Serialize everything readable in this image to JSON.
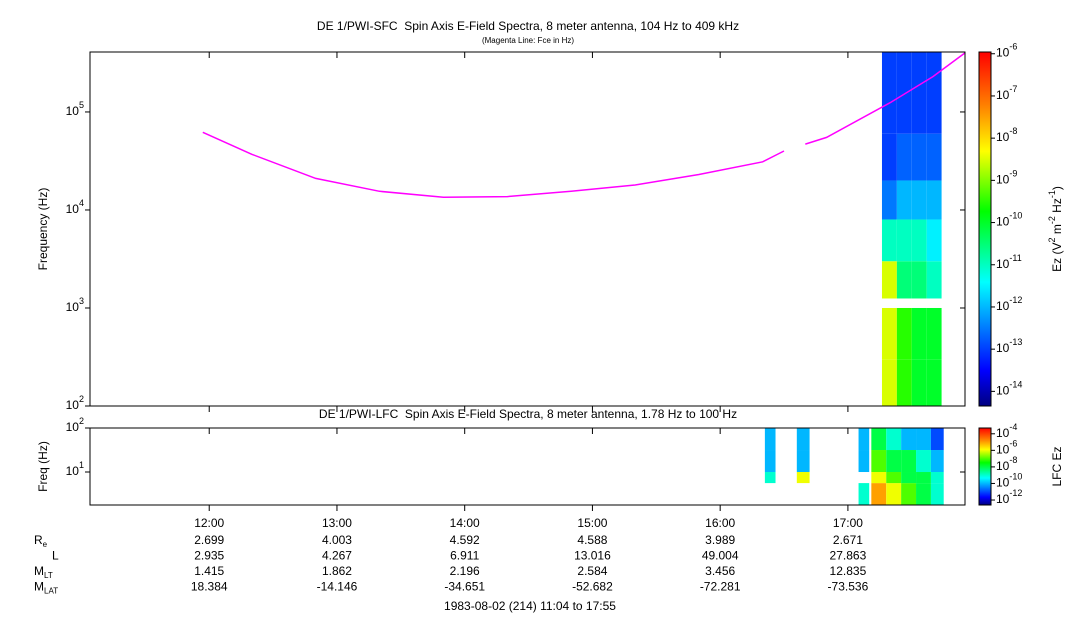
{
  "chart_data": [
    {
      "type": "spectrogram",
      "title": "DE 1/PWI-SFC  Spin Axis E-Field Spectra, 8 meter antenna, 104 Hz to 409 kHz",
      "subtitle": "(Magenta Line: Fce in Hz)",
      "y_label": "Frequency (Hz)",
      "log_y": true,
      "xlim": [
        664,
        1075
      ],
      "ylim": [
        100,
        409000
      ],
      "yticks": [
        {
          "value": 100,
          "label": "10",
          "exp": "2"
        },
        {
          "value": 1000,
          "label": "10",
          "exp": "3"
        },
        {
          "value": 10000,
          "label": "10",
          "exp": "4"
        },
        {
          "value": 100000,
          "label": "10",
          "exp": "5"
        }
      ],
      "freq_edges": [
        100,
        300,
        1000,
        1250,
        3000,
        8000,
        20000,
        60000,
        409000
      ],
      "blocks": [
        {
          "x": [
            1036,
            1043
          ],
          "z": [
            3e-09,
            3e-09,
            null,
            3e-09,
            1e-11,
            3e-13,
            1e-13,
            1e-13
          ]
        },
        {
          "x": [
            1043,
            1050
          ],
          "z": [
            3e-10,
            3e-10,
            null,
            3e-11,
            1e-11,
            1e-12,
            2e-13,
            1e-13
          ]
        },
        {
          "x": [
            1050,
            1057
          ],
          "z": [
            1e-10,
            1e-10,
            null,
            3e-11,
            1e-11,
            1e-12,
            2e-13,
            1e-13
          ]
        },
        {
          "x": [
            1057,
            1064
          ],
          "z": [
            1e-10,
            1e-10,
            null,
            1e-11,
            3e-12,
            1e-12,
            2e-13,
            1e-13
          ]
        }
      ],
      "series": [
        {
          "name": "Fce",
          "color": "#ff00ff",
          "x": [
            717,
            740,
            770,
            800,
            830,
            860,
            890,
            920,
            950,
            980,
            990,
            995,
            1000,
            1010,
            1040,
            1060,
            1075
          ],
          "values": [
            62000,
            37000,
            21000,
            15500,
            13500,
            13700,
            15500,
            18000,
            23000,
            31000,
            40000,
            null,
            47000,
            55000,
            125000,
            230000,
            400000
          ]
        }
      ],
      "colorbar": {
        "label_parts": [
          "Ez (V",
          "2",
          " m",
          "-2",
          " Hz",
          "-1",
          ")"
        ],
        "lim": [
          4.5e-15,
          1.1e-06
        ],
        "ticks": [
          {
            "value": 1e-06,
            "label": "10",
            "exp": "-6"
          },
          {
            "value": 1e-07,
            "label": "10",
            "exp": "-7"
          },
          {
            "value": 1e-08,
            "label": "10",
            "exp": "-8"
          },
          {
            "value": 1e-09,
            "label": "10",
            "exp": "-9"
          },
          {
            "value": 1e-10,
            "label": "10",
            "exp": "-10"
          },
          {
            "value": 1e-11,
            "label": "10",
            "exp": "-11"
          },
          {
            "value": 1e-12,
            "label": "10",
            "exp": "-12"
          },
          {
            "value": 1e-13,
            "label": "10",
            "exp": "-13"
          },
          {
            "value": 1e-14,
            "label": "10",
            "exp": "-14"
          }
        ]
      }
    },
    {
      "type": "spectrogram",
      "title": "DE 1/PWI-LFC  Spin Axis E-Field Spectra, 8 meter antenna, 1.78 Hz to 100 Hz",
      "y_label": "Freq (Hz)",
      "log_y": true,
      "xlim": [
        664,
        1075
      ],
      "xticks": [
        {
          "value": 720,
          "label": "12:00"
        },
        {
          "value": 780,
          "label": "13:00"
        },
        {
          "value": 840,
          "label": "14:00"
        },
        {
          "value": 900,
          "label": "15:00"
        },
        {
          "value": 960,
          "label": "16:00"
        },
        {
          "value": 1020,
          "label": "17:00"
        }
      ],
      "ylim": [
        1.78,
        100
      ],
      "yticks": [
        {
          "value": 10,
          "label": "10",
          "exp": "1"
        },
        {
          "value": 100,
          "label": "10",
          "exp": "2"
        }
      ],
      "freq_edges": [
        1.78,
        5.6,
        10,
        31.6,
        100
      ],
      "blocks": [
        {
          "x": [
            981,
            986
          ],
          "z": [
            null,
            1e-09,
            1e-10,
            1e-10
          ]
        },
        {
          "x": [
            996,
            1002
          ],
          "z": [
            null,
            1e-06,
            1e-10,
            1e-10
          ]
        },
        {
          "x": [
            1025,
            1030
          ],
          "z": [
            1e-09,
            null,
            1e-10,
            1e-10
          ]
        },
        {
          "x": [
            1031,
            1038
          ],
          "z": [
            1e-05,
            1e-06,
            1e-07,
            1e-08
          ]
        },
        {
          "x": [
            1038,
            1045
          ],
          "z": [
            1e-06,
            1e-07,
            1e-08,
            1e-09
          ]
        },
        {
          "x": [
            1045,
            1052
          ],
          "z": [
            1e-07,
            1e-08,
            1e-08,
            1e-10
          ]
        },
        {
          "x": [
            1052,
            1059
          ],
          "z": [
            1e-08,
            1e-08,
            1e-09,
            1e-10
          ]
        },
        {
          "x": [
            1059,
            1065
          ],
          "z": [
            1e-09,
            1e-09,
            1e-10,
            1e-11
          ]
        }
      ],
      "colorbar": {
        "label_parts": [
          "LFC Ez"
        ],
        "lim": [
          2.5e-13,
          0.0005
        ],
        "ticks": [
          {
            "value": 0.0001,
            "label": "10",
            "exp": "-4"
          },
          {
            "value": 1e-06,
            "label": "10",
            "exp": "-6"
          },
          {
            "value": 1e-08,
            "label": "10",
            "exp": "-8"
          },
          {
            "value": 1e-10,
            "label": "10",
            "exp": "-10"
          },
          {
            "value": 1e-12,
            "label": "10",
            "exp": "-12"
          }
        ]
      }
    }
  ],
  "ephemeris": {
    "rows": [
      {
        "label": "R",
        "sub": "e",
        "values": [
          2.699,
          4.003,
          4.592,
          4.588,
          3.989,
          2.671
        ]
      },
      {
        "label": "L",
        "values": [
          2.935,
          4.267,
          6.911,
          13.016,
          49.004,
          27.863
        ]
      },
      {
        "label": "M",
        "sub": "LT",
        "values": [
          1.415,
          1.862,
          2.196,
          2.584,
          3.456,
          12.835
        ]
      },
      {
        "label": "M",
        "sub": "LAT",
        "values": [
          18.384,
          -14.146,
          -34.651,
          -52.682,
          -72.281,
          -73.536
        ]
      }
    ],
    "footer": "1983-08-02 (214) 11:04 to 17:55"
  }
}
